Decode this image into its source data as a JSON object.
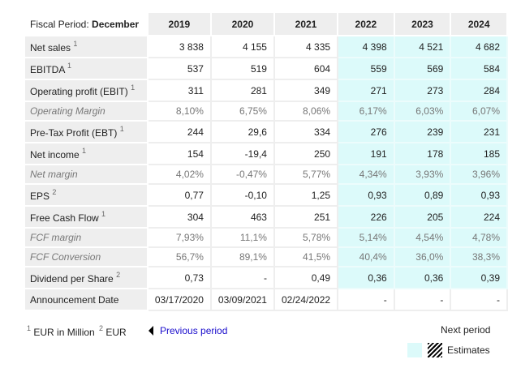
{
  "header": {
    "label_prefix": "Fiscal Period:",
    "label_value": "December",
    "years": [
      "2019",
      "2020",
      "2021",
      "2022",
      "2023",
      "2024"
    ],
    "estimate_from_index": 3
  },
  "rows": [
    {
      "label": "Net sales",
      "sup": "1",
      "italic": false,
      "values": [
        "3 838",
        "4 155",
        "4 335",
        "4 398",
        "4 521",
        "4 682"
      ]
    },
    {
      "label": "EBITDA",
      "sup": "1",
      "italic": false,
      "values": [
        "537",
        "519",
        "604",
        "559",
        "569",
        "584"
      ]
    },
    {
      "label": "Operating profit (EBIT)",
      "sup": "1",
      "italic": false,
      "values": [
        "311",
        "281",
        "349",
        "271",
        "273",
        "284"
      ]
    },
    {
      "label": "Operating Margin",
      "sup": "",
      "italic": true,
      "values": [
        "8,10%",
        "6,75%",
        "8,06%",
        "6,17%",
        "6,03%",
        "6,07%"
      ]
    },
    {
      "label": "Pre-Tax Profit (EBT)",
      "sup": "1",
      "italic": false,
      "values": [
        "244",
        "29,6",
        "334",
        "276",
        "239",
        "231"
      ]
    },
    {
      "label": "Net income",
      "sup": "1",
      "italic": false,
      "values": [
        "154",
        "-19,4",
        "250",
        "191",
        "178",
        "185"
      ]
    },
    {
      "label": "Net margin",
      "sup": "",
      "italic": true,
      "values": [
        "4,02%",
        "-0,47%",
        "5,77%",
        "4,34%",
        "3,93%",
        "3,96%"
      ]
    },
    {
      "label": "EPS",
      "sup": "2",
      "italic": false,
      "values": [
        "0,77",
        "-0,10",
        "1,25",
        "0,93",
        "0,89",
        "0,93"
      ]
    },
    {
      "label": "Free Cash Flow",
      "sup": "1",
      "italic": false,
      "values": [
        "304",
        "463",
        "251",
        "226",
        "205",
        "224"
      ]
    },
    {
      "label": "FCF margin",
      "sup": "",
      "italic": true,
      "values": [
        "7,93%",
        "11,1%",
        "5,78%",
        "5,14%",
        "4,54%",
        "4,78%"
      ]
    },
    {
      "label": "FCF Conversion",
      "sup": "",
      "italic": true,
      "values": [
        "56,7%",
        "89,1%",
        "41,5%",
        "40,4%",
        "36,0%",
        "38,3%"
      ]
    },
    {
      "label": "Dividend per Share",
      "sup": "2",
      "italic": false,
      "values": [
        "0,73",
        "-",
        "0,49",
        "0,36",
        "0,36",
        "0,39"
      ]
    },
    {
      "label": "Announcement Date",
      "sup": "",
      "italic": false,
      "no_estimate_shade": true,
      "values": [
        "03/17/2020",
        "03/09/2021",
        "02/24/2022",
        "-",
        "-",
        "-"
      ]
    }
  ],
  "footer": {
    "note1_sup": "1",
    "note1": "EUR in Million",
    "note2_sup": "2",
    "note2": "EUR",
    "previous": "Previous period",
    "next": "Next period",
    "legend": "Estimates"
  },
  "colors": {
    "estimate": "#dcfafa",
    "label_bg": "#eeeeee",
    "link": "#1a0dcc"
  }
}
